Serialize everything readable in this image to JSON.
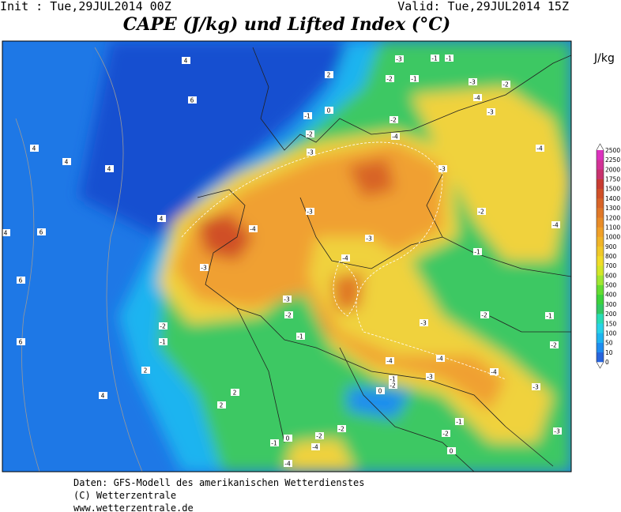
{
  "header": {
    "init": "Init : Tue,29JUL2014 00Z",
    "valid": "Valid: Tue,29JUL2014 15Z"
  },
  "title": "CAPE (J/kg) und Lifted Index (°C)",
  "unit": "J/kg",
  "colorbar": {
    "levels": [
      "0",
      "10",
      "50",
      "100",
      "150",
      "200",
      "300",
      "400",
      "500",
      "600",
      "700",
      "800",
      "900",
      "1000",
      "1100",
      "1200",
      "1300",
      "1400",
      "1500",
      "1750",
      "2000",
      "2250",
      "2500"
    ],
    "colors": [
      "#2864dc",
      "#1e8cf0",
      "#1eb4f0",
      "#28d2e6",
      "#28dcb4",
      "#32c864",
      "#3cd23c",
      "#64dc32",
      "#a0e632",
      "#d2e628",
      "#f0dc28",
      "#f0c828",
      "#f0b428",
      "#f0a028",
      "#e88c28",
      "#e07828",
      "#d86428",
      "#d05028",
      "#c83c32",
      "#c8326e",
      "#d23296",
      "#dc32be"
    ]
  },
  "contour_labels": [
    "4",
    "6",
    "4",
    "4",
    "4",
    "4",
    "4",
    "6",
    "6",
    "6",
    "2",
    "4",
    "2",
    "2",
    "2",
    "0",
    "-1",
    "-3",
    "-1",
    "-1",
    "-2",
    "-1",
    "-3",
    "-2",
    "-4",
    "-3",
    "-2",
    "-2",
    "-3",
    "-4",
    "-3",
    "-4",
    "-3",
    "-2",
    "-4",
    "-4",
    "-3",
    "-1",
    "-4",
    "-3",
    "-3",
    "-2",
    "-2",
    "-1",
    "-2",
    "-3",
    "-1",
    "-1",
    "-2",
    "-4",
    "-4",
    "-3",
    "-4",
    "-1",
    "-2",
    "0",
    "-3",
    "-1",
    "-2",
    "-2",
    "0",
    "-1",
    "-4",
    "-2",
    "-3",
    "-4",
    "0"
  ],
  "footer": [
    "Daten: GFS-Modell des amerikanischen Wetterdienstes",
    "(C) Wetterzentrale",
    "www.wetterzentrale.de"
  ]
}
